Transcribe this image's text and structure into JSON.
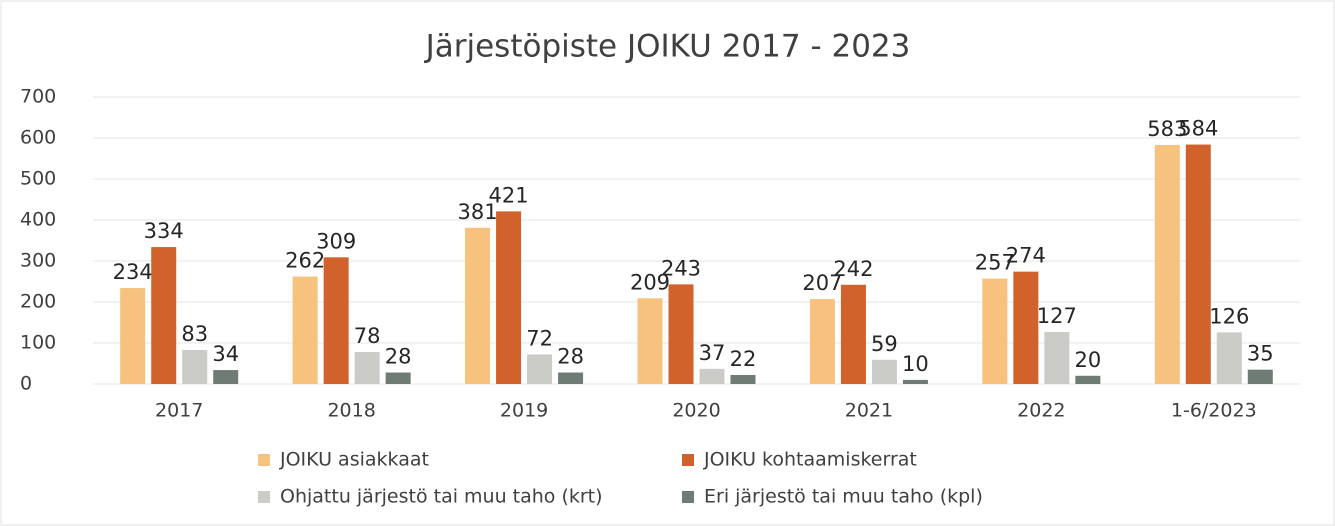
{
  "chart_data": {
    "type": "bar",
    "title": "Järjestöpiste JOIKU 2017 - 2023",
    "categories": [
      "2017",
      "2018",
      "2019",
      "2020",
      "2021",
      "2022",
      "1-6/2023"
    ],
    "series": [
      {
        "name": "JOIKU asiakkaat",
        "color": "#f6c27e",
        "values": [
          234,
          262,
          381,
          209,
          207,
          257,
          583
        ]
      },
      {
        "name": "JOIKU kohtaamiskerrat",
        "color": "#d2622b",
        "values": [
          334,
          309,
          421,
          243,
          242,
          274,
          584
        ]
      },
      {
        "name": "Ohjattu järjestö tai muu taho (krt)",
        "color": "#cbcbc7",
        "values": [
          83,
          78,
          72,
          37,
          59,
          127,
          126
        ]
      },
      {
        "name": "Eri järjestö tai muu taho (kpl)",
        "color": "#6f7c76",
        "values": [
          34,
          28,
          28,
          22,
          10,
          20,
          35
        ]
      }
    ],
    "ylim": [
      0,
      700
    ],
    "yticks": [
      0,
      100,
      200,
      300,
      400,
      500,
      600,
      700
    ],
    "grid": true,
    "legend": "bottom"
  }
}
